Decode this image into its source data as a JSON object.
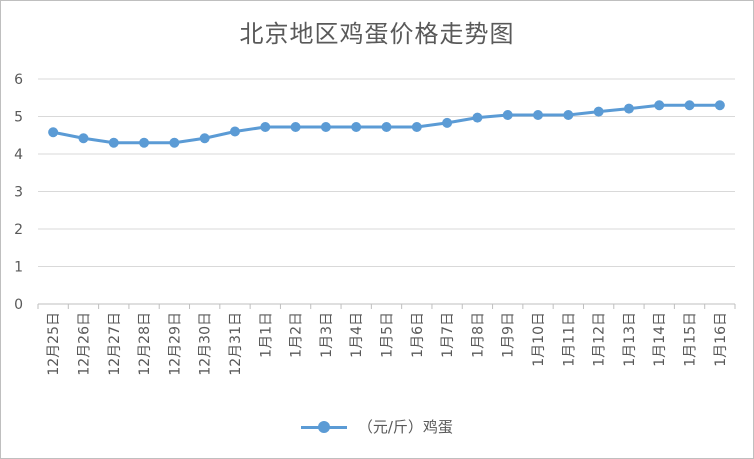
{
  "chart_data": {
    "type": "line",
    "title": "北京地区鸡蛋价格走势图",
    "categories": [
      "12月25日",
      "12月26日",
      "12月27日",
      "12月28日",
      "12月29日",
      "12月30日",
      "12月31日",
      "1月1日",
      "1月2日",
      "1月3日",
      "1月4日",
      "1月5日",
      "1月6日",
      "1月7日",
      "1月8日",
      "1月9日",
      "1月10日",
      "1月11日",
      "1月12日",
      "1月13日",
      "1月14日",
      "1月15日",
      "1月16日"
    ],
    "series": [
      {
        "name": "（元/斤）鸡蛋",
        "values": [
          4.58,
          4.42,
          4.3,
          4.3,
          4.3,
          4.42,
          4.6,
          4.72,
          4.72,
          4.72,
          4.72,
          4.72,
          4.72,
          4.83,
          4.97,
          5.04,
          5.04,
          5.04,
          5.13,
          5.21,
          5.3,
          5.3,
          5.3
        ],
        "color": "#5b9bd5"
      }
    ],
    "ylim": [
      0,
      6
    ],
    "yticks": [
      "0",
      "1",
      "2",
      "3",
      "4",
      "5",
      "6"
    ],
    "grid": true,
    "legend_position": "bottom",
    "xlabel": "",
    "ylabel": ""
  }
}
